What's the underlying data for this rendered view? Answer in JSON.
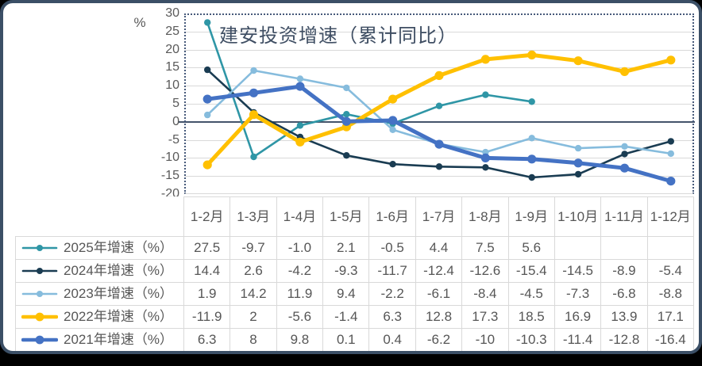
{
  "card": {
    "background": "#FFFFFF",
    "border_color": "#3B4F66",
    "outer_background": "#000000"
  },
  "chart_data": {
    "type": "line",
    "title": "建安投资增速（累计同比）",
    "y_unit": "%",
    "xlabel": "",
    "ylabel": "%",
    "ylim": [
      -20,
      30
    ],
    "y_ticks": [
      30,
      25,
      20,
      15,
      10,
      5,
      0,
      -5,
      -10,
      -15,
      -20
    ],
    "grid": true,
    "legend_position": "table-left",
    "categories": [
      "1-2月",
      "1-3月",
      "1-4月",
      "1-5月",
      "1-6月",
      "1-7月",
      "1-8月",
      "1-9月",
      "1-10月",
      "1-11月",
      "1-12月"
    ],
    "series": [
      {
        "name": "2025年增速（%）",
        "color": "#2F96A6",
        "thick": false,
        "values": [
          27.5,
          -9.7,
          -1.0,
          2.1,
          -0.5,
          4.4,
          7.5,
          5.6,
          null,
          null,
          null
        ],
        "cells": [
          "27.5",
          "-9.7",
          "-1.0",
          "2.1",
          "-0.5",
          "4.4",
          "7.5",
          "5.6",
          "",
          "",
          ""
        ]
      },
      {
        "name": "2024年增速（%）",
        "color": "#1A3C52",
        "thick": false,
        "values": [
          14.4,
          2.6,
          -4.2,
          -9.3,
          -11.7,
          -12.4,
          -12.6,
          -15.4,
          -14.5,
          -8.9,
          -5.4
        ],
        "cells": [
          "14.4",
          "2.6",
          "-4.2",
          "-9.3",
          "-11.7",
          "-12.4",
          "-12.6",
          "-15.4",
          "-14.5",
          "-8.9",
          "-5.4"
        ]
      },
      {
        "name": "2023年增速（%）",
        "color": "#86BCDD",
        "thick": false,
        "values": [
          1.9,
          14.2,
          11.9,
          9.4,
          -2.2,
          -6.1,
          -8.4,
          -4.5,
          -7.3,
          -6.8,
          -8.8
        ],
        "cells": [
          "1.9",
          "14.2",
          "11.9",
          "9.4",
          "-2.2",
          "-6.1",
          "-8.4",
          "-4.5",
          "-7.3",
          "-6.8",
          "-8.8"
        ]
      },
      {
        "name": "2022年增速（%）",
        "color": "#FFC000",
        "thick": true,
        "values": [
          -11.9,
          2,
          -5.6,
          -1.4,
          6.3,
          12.8,
          17.3,
          18.5,
          16.9,
          13.9,
          17.1
        ],
        "cells": [
          "-11.9",
          "2",
          "-5.6",
          "-1.4",
          "6.3",
          "12.8",
          "17.3",
          "18.5",
          "16.9",
          "13.9",
          "17.1"
        ]
      },
      {
        "name": "2021年增速（%）",
        "color": "#4472C4",
        "thick": true,
        "values": [
          6.3,
          8,
          9.8,
          0.1,
          0.4,
          -6.2,
          -10,
          -10.3,
          -11.4,
          -12.8,
          -16.4
        ],
        "cells": [
          "6.3",
          "8",
          "9.8",
          "0.1",
          "0.4",
          "-6.2",
          "-10",
          "-10.3",
          "-11.4",
          "-12.8",
          "-16.4"
        ]
      }
    ],
    "style": {
      "title_color": "#3F4E63",
      "axis_text_color": "#595959",
      "gridline_color": "#D9D9D9",
      "zero_line_color": "#44546A",
      "plot_border_color": "#46597A",
      "table_border_color": "#D9D9D9",
      "table_text_color": "#565656"
    }
  }
}
